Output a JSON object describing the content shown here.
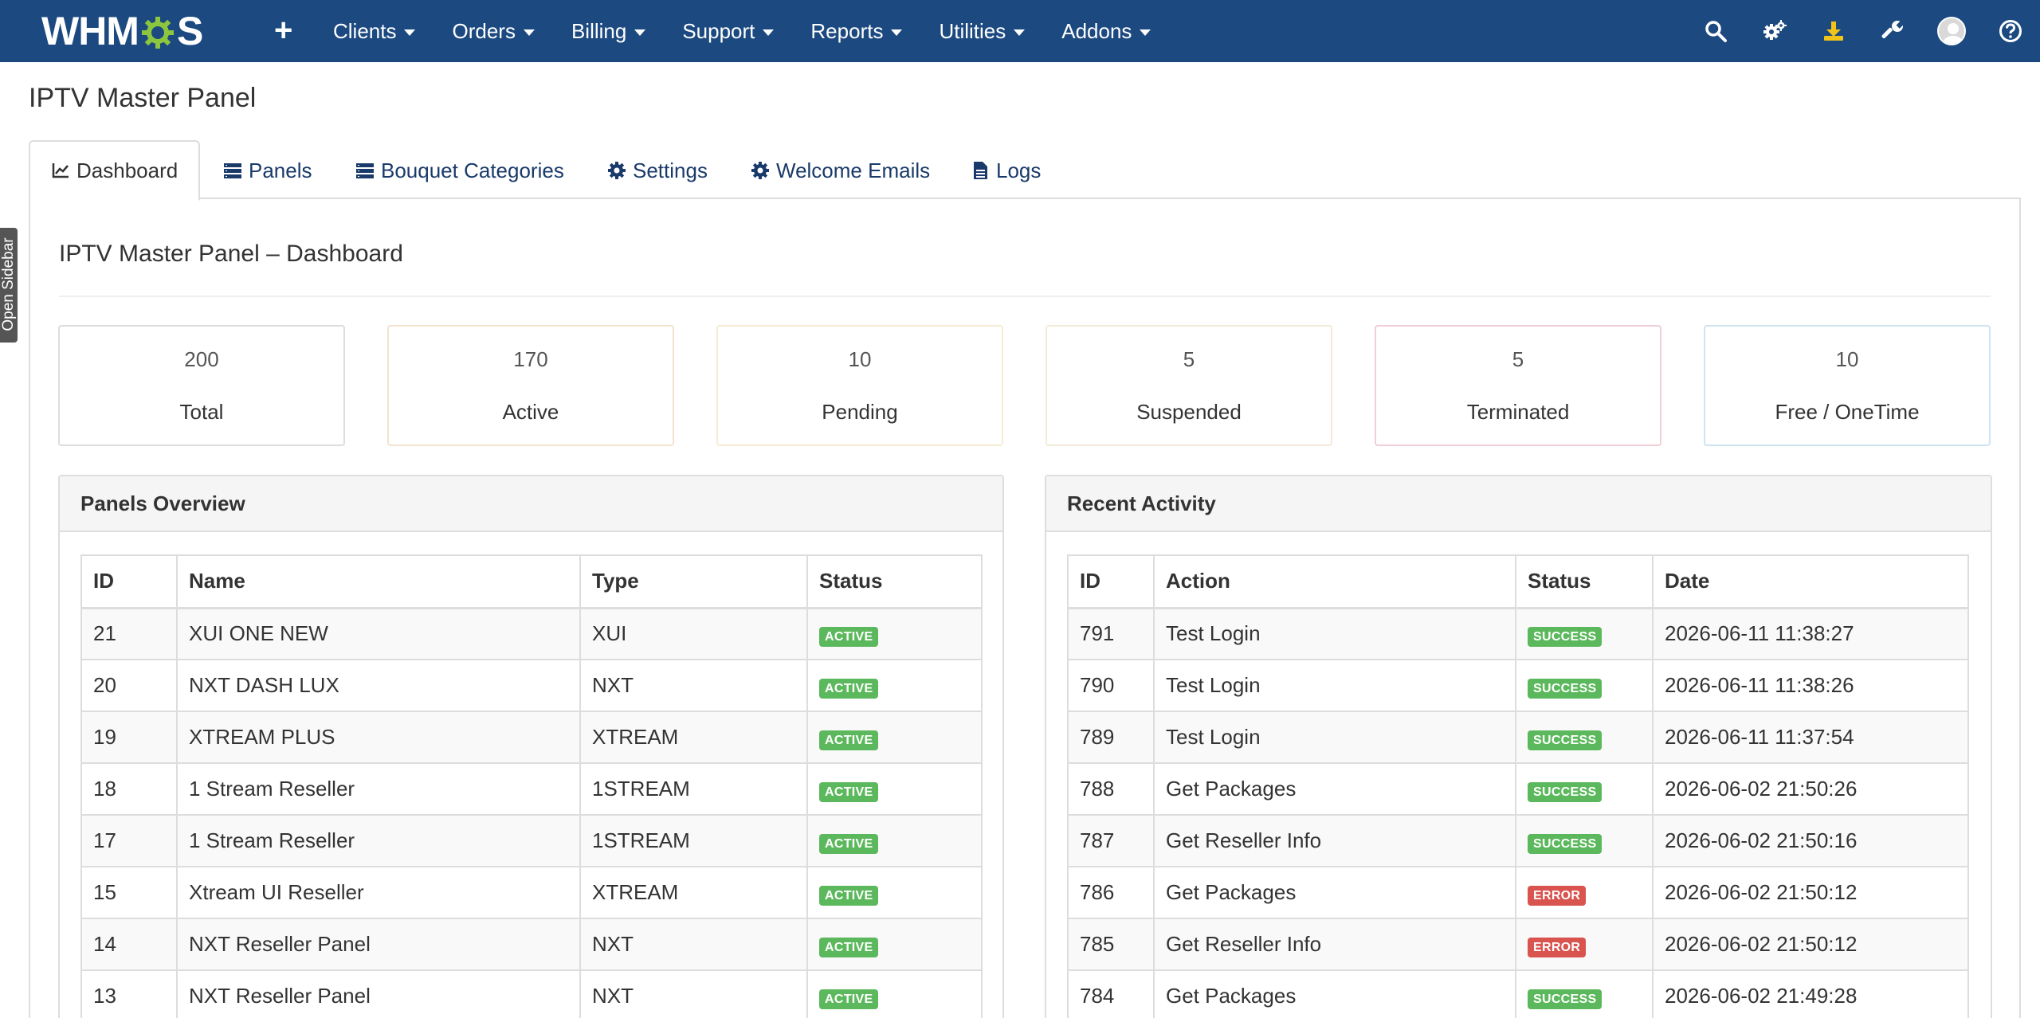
{
  "navbar": {
    "logo_text_left": "WHM",
    "logo_text_right": "S",
    "menu": [
      {
        "label": "Clients"
      },
      {
        "label": "Orders"
      },
      {
        "label": "Billing"
      },
      {
        "label": "Support"
      },
      {
        "label": "Reports"
      },
      {
        "label": "Utilities"
      },
      {
        "label": "Addons"
      }
    ],
    "icons": [
      "search-icon",
      "cogs-icon",
      "download-icon",
      "wrench-icon",
      "avatar",
      "help-icon"
    ],
    "colors": {
      "background": "#1c4a80",
      "download_icon": "#f0c419"
    }
  },
  "sidebar_toggle": {
    "label": "Open Sidebar"
  },
  "page_title": "IPTV Master Panel",
  "tabs": [
    {
      "label": "Dashboard",
      "icon": "chart-icon",
      "active": true
    },
    {
      "label": "Panels",
      "icon": "list-icon"
    },
    {
      "label": "Bouquet Categories",
      "icon": "list-icon"
    },
    {
      "label": "Settings",
      "icon": "gear-icon"
    },
    {
      "label": "Welcome Emails",
      "icon": "gear-icon"
    },
    {
      "label": "Logs",
      "icon": "file-icon"
    }
  ],
  "dashboard": {
    "title": "IPTV Master Panel – Dashboard",
    "stats": [
      {
        "value": "200",
        "label": "Total",
        "border": "#dddddd"
      },
      {
        "value": "170",
        "label": "Active",
        "border": "#f3e3cf"
      },
      {
        "value": "10",
        "label": "Pending",
        "border": "#f6ecd4"
      },
      {
        "value": "5",
        "label": "Suspended",
        "border": "#f3ead7"
      },
      {
        "value": "5",
        "label": "Terminated",
        "border": "#f0cfd6"
      },
      {
        "value": "10",
        "label": "Free / OneTime",
        "border": "#cfe4f2"
      }
    ]
  },
  "panels_overview": {
    "title": "Panels Overview",
    "columns": [
      "ID",
      "Name",
      "Type",
      "Status"
    ],
    "rows": [
      {
        "id": "21",
        "name": "XUI ONE NEW",
        "type": "XUI",
        "status": "ACTIVE"
      },
      {
        "id": "20",
        "name": "NXT DASH LUX",
        "type": "NXT",
        "status": "ACTIVE"
      },
      {
        "id": "19",
        "name": "XTREAM PLUS",
        "type": "XTREAM",
        "status": "ACTIVE"
      },
      {
        "id": "18",
        "name": "1 Stream Reseller",
        "type": "1STREAM",
        "status": "ACTIVE"
      },
      {
        "id": "17",
        "name": "1 Stream Reseller",
        "type": "1STREAM",
        "status": "ACTIVE"
      },
      {
        "id": "15",
        "name": "Xtream UI Reseller",
        "type": "XTREAM",
        "status": "ACTIVE"
      },
      {
        "id": "14",
        "name": "NXT Reseller Panel",
        "type": "NXT",
        "status": "ACTIVE"
      },
      {
        "id": "13",
        "name": "NXT Reseller Panel",
        "type": "NXT",
        "status": "ACTIVE"
      }
    ]
  },
  "recent_activity": {
    "title": "Recent Activity",
    "columns": [
      "ID",
      "Action",
      "Status",
      "Date"
    ],
    "rows": [
      {
        "id": "791",
        "action": "Test Login",
        "status": "SUCCESS",
        "date": "2026-06-11 11:38:27"
      },
      {
        "id": "790",
        "action": "Test Login",
        "status": "SUCCESS",
        "date": "2026-06-11 11:38:26"
      },
      {
        "id": "789",
        "action": "Test Login",
        "status": "SUCCESS",
        "date": "2026-06-11 11:37:54"
      },
      {
        "id": "788",
        "action": "Get Packages",
        "status": "SUCCESS",
        "date": "2026-06-02 21:50:26"
      },
      {
        "id": "787",
        "action": "Get Reseller Info",
        "status": "SUCCESS",
        "date": "2026-06-02 21:50:16"
      },
      {
        "id": "786",
        "action": "Get Packages",
        "status": "ERROR",
        "date": "2026-06-02 21:50:12"
      },
      {
        "id": "785",
        "action": "Get Reseller Info",
        "status": "ERROR",
        "date": "2026-06-02 21:50:12"
      },
      {
        "id": "784",
        "action": "Get Packages",
        "status": "SUCCESS",
        "date": "2026-06-02 21:49:28"
      }
    ]
  }
}
